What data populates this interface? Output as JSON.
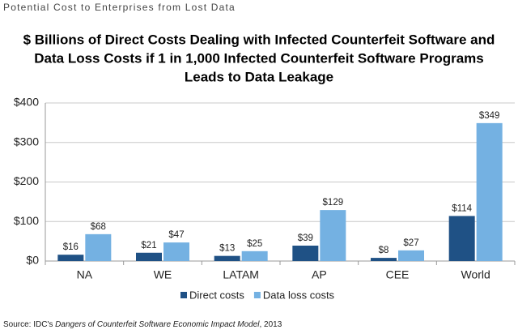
{
  "chart_data": {
    "type": "bar",
    "header": "Potential Cost to Enterprises from Lost Data",
    "title": [
      "$ Billions of Direct Costs Dealing with Infected Counterfeit Software and",
      "Data Loss Costs if 1 in 1,000 Infected Counterfeit Software Programs",
      "Leads to Data Leakage"
    ],
    "categories": [
      "NA",
      "WE",
      "LATAM",
      "AP",
      "CEE",
      "World"
    ],
    "series": [
      {
        "name": "Direct costs",
        "color": "#1f5185",
        "values": [
          16,
          21,
          13,
          39,
          8,
          114
        ],
        "value_labels": [
          "$16",
          "$21",
          "$13",
          "$39",
          "$8",
          "$114"
        ]
      },
      {
        "name": "Data loss costs",
        "color": "#74b1e2",
        "values": [
          68,
          47,
          25,
          129,
          27,
          349
        ],
        "value_labels": [
          "$68",
          "$47",
          "$25",
          "$129",
          "$27",
          "$349"
        ]
      }
    ],
    "ylim": [
      0,
      400
    ],
    "yticks": [
      {
        "value": 0,
        "label": "$0"
      },
      {
        "value": 100,
        "label": "$100"
      },
      {
        "value": 200,
        "label": "$200"
      },
      {
        "value": 300,
        "label": "$300"
      },
      {
        "value": 400,
        "label": "$400"
      }
    ],
    "grid": true,
    "legend": "bottom",
    "source": {
      "prefix": "Source: IDC's ",
      "italic": "Dangers of Counterfeit Software Economic Impact Model",
      "suffix": ", 2013"
    }
  }
}
